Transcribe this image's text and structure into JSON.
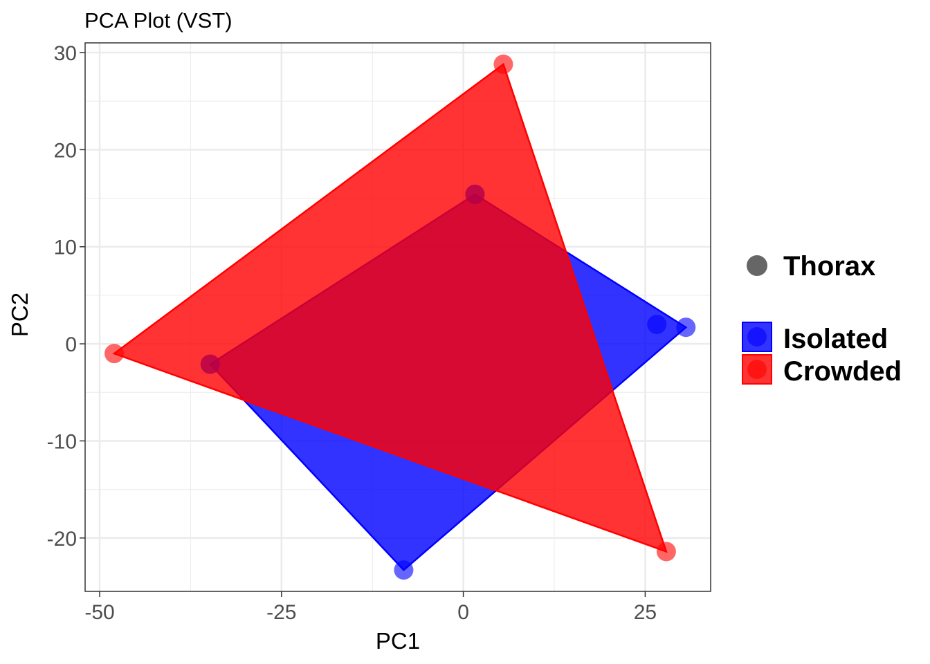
{
  "chart_data": {
    "type": "scatter",
    "title": "PCA Plot (VST)",
    "xlabel": "PC1",
    "ylabel": "PC2",
    "xlim": [
      -52,
      34
    ],
    "ylim": [
      -25.5,
      31
    ],
    "x_ticks": [
      -50,
      -25,
      0,
      25
    ],
    "y_ticks": [
      -20,
      -10,
      0,
      10,
      20,
      30
    ],
    "x_tick_labels": [
      "-50",
      "-25",
      "0",
      "25"
    ],
    "y_tick_labels": [
      "-20",
      "-10",
      "0",
      "10",
      "20",
      "30"
    ],
    "grid": true,
    "legend_position": "right",
    "shape_legend": [
      {
        "label": "Thorax",
        "color": "#666666"
      }
    ],
    "series": [
      {
        "name": "Isolated",
        "color": "#0000ff",
        "points": [
          {
            "x": -8.2,
            "y": -23.3
          },
          {
            "x": -34.8,
            "y": -2.1
          },
          {
            "x": 1.6,
            "y": 15.4
          },
          {
            "x": 26.6,
            "y": 2.0
          },
          {
            "x": 30.6,
            "y": 1.7
          }
        ],
        "hull": [
          {
            "x": -8.2,
            "y": -23.3
          },
          {
            "x": 30.6,
            "y": 1.7
          },
          {
            "x": 1.6,
            "y": 15.4
          },
          {
            "x": -34.8,
            "y": -2.1
          }
        ]
      },
      {
        "name": "Crowded",
        "color": "#ff0000",
        "points": [
          {
            "x": -48.0,
            "y": -1.0
          },
          {
            "x": -34.8,
            "y": -2.1
          },
          {
            "x": 1.6,
            "y": 15.4
          },
          {
            "x": 5.5,
            "y": 28.8
          },
          {
            "x": 27.9,
            "y": -21.4
          }
        ],
        "hull": [
          {
            "x": -48.0,
            "y": -1.0
          },
          {
            "x": 5.5,
            "y": 28.8
          },
          {
            "x": 27.9,
            "y": -21.4
          }
        ]
      }
    ]
  }
}
